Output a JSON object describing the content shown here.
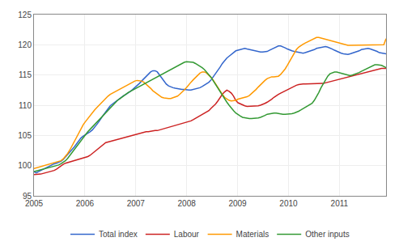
{
  "chart_data": {
    "type": "line",
    "x": [
      2005.0,
      2005.0441,
      2005.0881,
      2005.1322,
      2005.1762,
      2005.2203,
      2005.2643,
      2005.3084,
      2005.3525,
      2005.3965,
      2005.4406,
      2005.4846,
      2005.5287,
      2005.5727,
      2005.6168,
      2005.6609,
      2005.7049,
      2005.749,
      2005.793,
      2005.8371,
      2005.8811,
      2005.9252,
      2005.9693,
      2006.0133,
      2006.0574,
      2006.1014,
      2006.1455,
      2006.1895,
      2006.2336,
      2006.2777,
      2006.3217,
      2006.3658,
      2006.4098,
      2006.4539,
      2006.4979,
      2006.542,
      2006.5861,
      2006.6301,
      2006.6742,
      2006.7182,
      2006.7623,
      2006.8064,
      2006.8504,
      2006.8945,
      2006.9385,
      2006.9826,
      2007.0266,
      2007.0707,
      2007.1148,
      2007.1588,
      2007.2029,
      2007.2469,
      2007.291,
      2007.335,
      2007.3791,
      2007.4232,
      2007.4672,
      2007.5113,
      2007.5553,
      2007.5994,
      2007.6434,
      2007.6875,
      2007.7316,
      2007.7756,
      2007.8197,
      2007.8637,
      2007.9078,
      2007.9518,
      2007.9959,
      2008.04,
      2008.084,
      2008.1281,
      2008.1721,
      2008.2162,
      2008.2602,
      2008.3043,
      2008.3484,
      2008.3924,
      2008.4365,
      2008.4805,
      2008.5246,
      2008.5686,
      2008.6127,
      2008.6568,
      2008.7008,
      2008.7449,
      2008.7889,
      2008.833,
      2008.877,
      2008.9211,
      2008.9652,
      2009.0092,
      2009.0533,
      2009.0973,
      2009.1414,
      2009.1854,
      2009.2295,
      2009.2736,
      2009.3176,
      2009.3617,
      2009.4057,
      2009.4498,
      2009.4938,
      2009.5379,
      2009.582,
      2009.626,
      2009.6701,
      2009.7141,
      2009.7582,
      2009.8022,
      2009.8463,
      2009.8904,
      2009.9344,
      2009.9785,
      2010.0225,
      2010.0666,
      2010.1106,
      2010.1547,
      2010.1988,
      2010.2428,
      2010.2869,
      2010.3309,
      2010.375,
      2010.4191,
      2010.4631,
      2010.5072,
      2010.5512,
      2010.5953,
      2010.6393,
      2010.6834,
      2010.7275,
      2010.7715,
      2010.8156,
      2010.8596,
      2010.9037,
      2010.9477,
      2010.9918,
      2011.0359,
      2011.0799,
      2011.124,
      2011.168,
      2011.2121,
      2011.2561,
      2011.3002,
      2011.3443,
      2011.3883,
      2011.4324,
      2011.4764,
      2011.5205,
      2011.5645,
      2011.6086,
      2011.6527,
      2011.6967,
      2011.7408,
      2011.7848,
      2011.8289,
      2011.8729,
      2011.917
    ],
    "series": [
      {
        "name": "Total index",
        "color": "#3366cc",
        "values": [
          99.0,
          98.8,
          99.0,
          99.2,
          99.4,
          99.6,
          99.8,
          100.0,
          100.2,
          100.3,
          100.4,
          100.5,
          100.7,
          101.0,
          101.4,
          101.8,
          102.2,
          102.6,
          103.1,
          103.6,
          104.1,
          104.6,
          104.9,
          105.1,
          105.3,
          105.6,
          105.9,
          106.3,
          106.8,
          107.3,
          107.9,
          108.4,
          108.9,
          109.4,
          109.9,
          110.2,
          110.5,
          110.8,
          111.1,
          111.4,
          111.6,
          111.8,
          112.0,
          112.3,
          112.6,
          112.9,
          113.2,
          113.6,
          114.0,
          114.4,
          114.8,
          115.2,
          115.5,
          115.7,
          115.7,
          115.5,
          115.0,
          114.5,
          114.0,
          113.5,
          113.2,
          113.0,
          112.9,
          112.8,
          112.7,
          112.7,
          112.6,
          112.6,
          112.5,
          112.5,
          112.5,
          112.6,
          112.7,
          112.8,
          112.9,
          113.1,
          113.3,
          113.5,
          113.8,
          114.2,
          114.7,
          115.2,
          115.8,
          116.3,
          116.9,
          117.4,
          117.8,
          118.1,
          118.4,
          118.7,
          119.0,
          119.1,
          119.2,
          119.3,
          119.4,
          119.3,
          119.2,
          119.1,
          119.0,
          118.9,
          118.8,
          118.8,
          118.8,
          118.8,
          118.9,
          119.1,
          119.3,
          119.5,
          119.7,
          119.8,
          119.8,
          119.7,
          119.5,
          119.3,
          119.1,
          119.0,
          118.9,
          118.8,
          118.7,
          118.6,
          118.6,
          118.7,
          118.8,
          118.9,
          119.0,
          119.2,
          119.4,
          119.5,
          119.6,
          119.7,
          119.7,
          119.6,
          119.5,
          119.3,
          119.1,
          118.9,
          118.7,
          118.6,
          118.5,
          118.4,
          118.4,
          118.5,
          118.6,
          118.7,
          118.8,
          119.0,
          119.2,
          119.3,
          119.4,
          119.4,
          119.3,
          119.2,
          119.1,
          118.9,
          118.7,
          118.6,
          118.5,
          118.5
        ]
      },
      {
        "name": "Labour",
        "color": "#cc2222",
        "values": [
          98.5,
          98.5,
          98.5,
          98.6,
          98.7,
          98.8,
          98.9,
          99.0,
          99.1,
          99.2,
          99.4,
          99.7,
          100.0,
          100.2,
          100.4,
          100.5,
          100.6,
          100.7,
          100.8,
          100.9,
          101.0,
          101.1,
          101.2,
          101.3,
          101.5,
          101.7,
          102.0,
          102.3,
          102.7,
          103.0,
          103.3,
          103.6,
          103.8,
          103.9,
          104.0,
          104.1,
          104.2,
          104.3,
          104.4,
          104.5,
          104.6,
          104.7,
          104.8,
          104.9,
          105.0,
          105.1,
          105.2,
          105.3,
          105.4,
          105.5,
          105.6,
          105.6,
          105.7,
          105.7,
          105.8,
          105.8,
          105.9,
          106.0,
          106.1,
          106.2,
          106.3,
          106.4,
          106.5,
          106.6,
          106.7,
          106.8,
          106.9,
          107.0,
          107.1,
          107.2,
          107.4,
          107.6,
          107.8,
          108.0,
          108.2,
          108.4,
          108.6,
          108.8,
          109.1,
          109.5,
          109.8,
          110.2,
          110.7,
          111.3,
          111.8,
          112.2,
          112.5,
          112.3,
          112.0,
          111.5,
          110.8,
          110.4,
          110.2,
          110.0,
          109.9,
          109.8,
          109.8,
          109.8,
          109.8,
          109.8,
          109.9,
          110.0,
          110.1,
          110.3,
          110.5,
          110.7,
          111.0,
          111.3,
          111.6,
          111.8,
          112.0,
          112.2,
          112.4,
          112.6,
          112.8,
          113.0,
          113.2,
          113.3,
          113.4,
          113.5,
          113.5,
          113.5,
          113.5,
          113.5,
          113.5,
          113.5,
          113.5,
          113.5,
          113.5,
          113.6,
          113.7,
          113.8,
          113.9,
          114.0,
          114.1,
          114.2,
          114.3,
          114.4,
          114.5,
          114.6,
          114.7,
          114.8,
          114.9,
          115.0,
          115.1,
          115.2,
          115.3,
          115.4,
          115.5,
          115.6,
          115.7,
          115.8,
          115.9,
          116.0,
          116.1,
          116.1,
          116.1,
          116.1
        ]
      },
      {
        "name": "Materials",
        "color": "#ff9900",
        "values": [
          99.5,
          99.6,
          99.7,
          99.8,
          99.9,
          100.0,
          100.1,
          100.2,
          100.3,
          100.4,
          100.5,
          100.6,
          100.8,
          101.1,
          101.5,
          102.0,
          102.6,
          103.3,
          104.0,
          104.8,
          105.5,
          106.2,
          106.8,
          107.3,
          107.8,
          108.3,
          108.8,
          109.2,
          109.6,
          110.0,
          110.4,
          110.8,
          111.2,
          111.5,
          111.8,
          112.0,
          112.2,
          112.4,
          112.6,
          112.8,
          113.0,
          113.2,
          113.5,
          113.7,
          113.9,
          114.0,
          114.1,
          114.1,
          114.0,
          113.8,
          113.5,
          113.2,
          112.8,
          112.4,
          112.1,
          111.8,
          111.5,
          111.3,
          111.2,
          111.1,
          111.1,
          111.1,
          111.2,
          111.3,
          111.5,
          111.8,
          112.1,
          112.5,
          112.9,
          113.4,
          113.8,
          114.2,
          114.6,
          115.0,
          115.3,
          115.5,
          115.5,
          115.3,
          115.0,
          114.6,
          114.1,
          113.5,
          112.9,
          112.3,
          111.8,
          111.3,
          111.0,
          110.8,
          110.7,
          110.7,
          110.8,
          111.0,
          111.1,
          111.2,
          111.3,
          111.4,
          111.6,
          111.9,
          112.2,
          112.6,
          113.0,
          113.4,
          113.8,
          114.1,
          114.4,
          114.6,
          114.7,
          114.7,
          114.7,
          114.8,
          115.1,
          115.5,
          116.0,
          116.6,
          117.3,
          118.0,
          118.7,
          119.2,
          119.6,
          119.9,
          120.1,
          120.3,
          120.5,
          120.7,
          120.9,
          121.0,
          121.2,
          121.2,
          121.1,
          121.0,
          120.9,
          120.8,
          120.7,
          120.6,
          120.5,
          120.4,
          120.3,
          120.2,
          120.1,
          120.0,
          119.9,
          119.9,
          119.9,
          119.9,
          119.9,
          120.0,
          120.0,
          120.0,
          120.0,
          120.0,
          120.0,
          120.0,
          120.0,
          120.0,
          120.0,
          120.0,
          120.0,
          121.0
        ]
      },
      {
        "name": "Other inputs",
        "color": "#339933",
        "values": [
          99.0,
          99.1,
          99.2,
          99.3,
          99.4,
          99.5,
          99.6,
          99.7,
          99.8,
          99.9,
          100.0,
          100.1,
          100.3,
          100.5,
          100.8,
          101.2,
          101.7,
          102.2,
          102.7,
          103.2,
          103.7,
          104.2,
          104.7,
          105.2,
          105.6,
          106.0,
          106.4,
          106.8,
          107.2,
          107.6,
          108.0,
          108.4,
          108.8,
          109.2,
          109.6,
          110.0,
          110.4,
          110.7,
          111.0,
          111.3,
          111.6,
          111.8,
          112.1,
          112.3,
          112.5,
          112.7,
          112.9,
          113.1,
          113.3,
          113.5,
          113.7,
          113.9,
          114.1,
          114.3,
          114.5,
          114.7,
          114.9,
          115.1,
          115.3,
          115.5,
          115.7,
          115.9,
          116.1,
          116.3,
          116.5,
          116.7,
          116.9,
          117.1,
          117.2,
          117.2,
          117.2,
          117.1,
          116.9,
          116.7,
          116.5,
          116.2,
          115.9,
          115.5,
          115.1,
          114.6,
          114.0,
          113.4,
          112.8,
          112.2,
          111.6,
          111.0,
          110.5,
          110.0,
          109.5,
          109.1,
          108.7,
          108.4,
          108.2,
          108.0,
          107.9,
          107.8,
          107.8,
          107.8,
          107.8,
          107.8,
          107.9,
          108.0,
          108.1,
          108.3,
          108.5,
          108.6,
          108.7,
          108.7,
          108.7,
          108.6,
          108.5,
          108.5,
          108.5,
          108.5,
          108.5,
          108.6,
          108.7,
          108.8,
          109.0,
          109.2,
          109.4,
          109.6,
          109.8,
          110.0,
          110.3,
          110.8,
          111.4,
          112.1,
          112.9,
          113.6,
          114.2,
          114.8,
          115.2,
          115.4,
          115.5,
          115.5,
          115.4,
          115.3,
          115.2,
          115.1,
          115.0,
          114.9,
          115.0,
          115.1,
          115.2,
          115.4,
          115.6,
          115.8,
          116.0,
          116.2,
          116.4,
          116.6,
          116.7,
          116.7,
          116.7,
          116.6,
          116.4,
          116.2
        ]
      }
    ],
    "xlim": [
      2005.0,
      2011.917
    ],
    "xticks": [
      2005,
      2006,
      2007,
      2008,
      2009,
      2010,
      2011
    ],
    "ylim": [
      95,
      125
    ],
    "yticks": [
      95,
      100,
      105,
      110,
      115,
      120,
      125
    ],
    "grid": true,
    "legend": "bottom"
  }
}
